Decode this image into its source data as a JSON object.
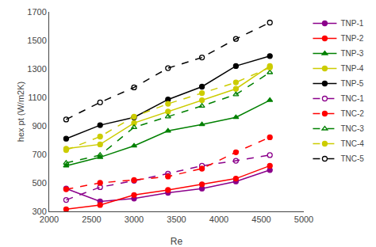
{
  "chart_data": {
    "type": "line",
    "x_label": "Re",
    "y_label": "hex pt (W/m2K)",
    "x": [
      2200,
      2600,
      3000,
      3400,
      3800,
      4200,
      4600
    ],
    "series": [
      {
        "name": "TNP-1",
        "color": "#8B008B",
        "marker": "circle",
        "line_style": "solid",
        "values": [
          460,
          370,
          390,
          430,
          460,
          510,
          590
        ]
      },
      {
        "name": "TNP-2",
        "color": "#ff0000",
        "marker": "circle",
        "line_style": "solid",
        "values": [
          315,
          345,
          415,
          450,
          490,
          530,
          620
        ]
      },
      {
        "name": "TNP-3",
        "color": "#008000",
        "marker": "triangle-up",
        "line_style": "solid",
        "values": [
          620,
          680,
          760,
          865,
          910,
          960,
          1080
        ]
      },
      {
        "name": "TNP-4",
        "color": "#cccc00",
        "marker": "circle",
        "line_style": "solid",
        "values": [
          740,
          770,
          920,
          1000,
          1080,
          1160,
          1320
        ]
      },
      {
        "name": "TNP-5",
        "color": "#000000",
        "marker": "circle",
        "line_style": "solid",
        "values": [
          810,
          905,
          960,
          1085,
          1175,
          1320,
          1390
        ]
      },
      {
        "name": "TNC-1",
        "color": "#8B008B",
        "marker": "circle-open",
        "line_style": "dash",
        "values": [
          380,
          470,
          515,
          565,
          620,
          655,
          695
        ]
      },
      {
        "name": "TNC-2",
        "color": "#ff0000",
        "marker": "circle",
        "line_style": "dash",
        "values": [
          455,
          500,
          520,
          545,
          600,
          715,
          820
        ]
      },
      {
        "name": "TNC-3",
        "color": "#008000",
        "marker": "triangle-up-open",
        "line_style": "dash",
        "values": [
          640,
          695,
          890,
          965,
          1040,
          1120,
          1275
        ]
      },
      {
        "name": "TNC-4",
        "color": "#cccc00",
        "marker": "circle",
        "line_style": "dash",
        "values": [
          730,
          825,
          965,
          1055,
          1130,
          1205,
          1310
        ]
      },
      {
        "name": "TNC-5",
        "color": "#000000",
        "marker": "circle-open",
        "line_style": "dash",
        "values": [
          945,
          1065,
          1170,
          1305,
          1380,
          1510,
          1625
        ]
      }
    ],
    "xlim": [
      2000,
      5000
    ],
    "ylim": [
      300,
      1700
    ],
    "xticks": [
      2000,
      2500,
      3000,
      3500,
      4000,
      4500,
      5000
    ],
    "yticks": [
      300,
      500,
      700,
      900,
      1100,
      1300,
      1500,
      1700
    ],
    "grid": false,
    "legend": "right"
  }
}
